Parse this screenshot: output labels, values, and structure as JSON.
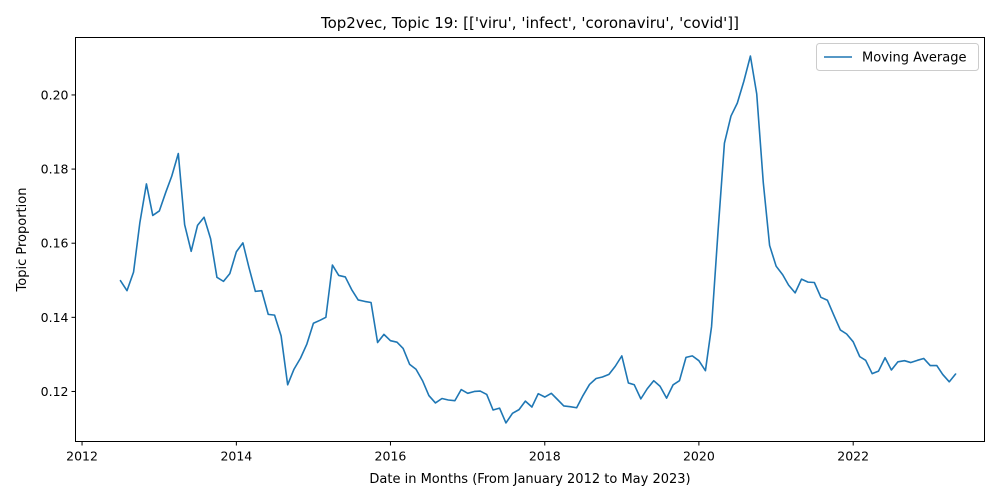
{
  "chart_data": {
    "type": "line",
    "title": "Top2vec, Topic 19: [['viru', 'infect', 'coronaviru', 'covid']]",
    "xlabel": "Date in Months (From January 2012 to May 2023)",
    "ylabel": "Topic Proportion",
    "xlim": [
      "2011-12-01",
      "2023-09-15"
    ],
    "ylim": [
      0.1065,
      0.2155
    ],
    "xticks": [
      "2012",
      "2014",
      "2016",
      "2018",
      "2020",
      "2022"
    ],
    "yticks": [
      "0.12",
      "0.14",
      "0.16",
      "0.18",
      "0.20"
    ],
    "grid": false,
    "legend_position": "top-right",
    "series": [
      {
        "name": "Moving Average",
        "color": "#1f77b4",
        "x": [
          "2012-07",
          "2012-08",
          "2012-09",
          "2012-10",
          "2012-11",
          "2012-12",
          "2013-01",
          "2013-02",
          "2013-03",
          "2013-04",
          "2013-05",
          "2013-06",
          "2013-07",
          "2013-08",
          "2013-09",
          "2013-10",
          "2013-11",
          "2013-12",
          "2014-01",
          "2014-02",
          "2014-03",
          "2014-04",
          "2014-05",
          "2014-06",
          "2014-07",
          "2014-08",
          "2014-09",
          "2014-10",
          "2014-11",
          "2014-12",
          "2015-01",
          "2015-02",
          "2015-03",
          "2015-04",
          "2015-05",
          "2015-06",
          "2015-07",
          "2015-08",
          "2015-09",
          "2015-10",
          "2015-11",
          "2015-12",
          "2016-01",
          "2016-02",
          "2016-03",
          "2016-04",
          "2016-05",
          "2016-06",
          "2016-07",
          "2016-08",
          "2016-09",
          "2016-10",
          "2016-11",
          "2016-12",
          "2017-01",
          "2017-02",
          "2017-03",
          "2017-04",
          "2017-05",
          "2017-06",
          "2017-07",
          "2017-08",
          "2017-09",
          "2017-10",
          "2017-11",
          "2017-12",
          "2018-01",
          "2018-02",
          "2018-03",
          "2018-04",
          "2018-05",
          "2018-06",
          "2018-07",
          "2018-08",
          "2018-09",
          "2018-10",
          "2018-11",
          "2018-12",
          "2019-01",
          "2019-02",
          "2019-03",
          "2019-04",
          "2019-05",
          "2019-06",
          "2019-07",
          "2019-08",
          "2019-09",
          "2019-10",
          "2019-11",
          "2019-12",
          "2020-01",
          "2020-02",
          "2020-03",
          "2020-04",
          "2020-05",
          "2020-06",
          "2020-07",
          "2020-08",
          "2020-09",
          "2020-10",
          "2020-11",
          "2020-12",
          "2021-01",
          "2021-02",
          "2021-03",
          "2021-04",
          "2021-05",
          "2021-06",
          "2021-07",
          "2021-08",
          "2021-09",
          "2021-10",
          "2021-11",
          "2021-12",
          "2022-01",
          "2022-02",
          "2022-03",
          "2022-04",
          "2022-05",
          "2022-06",
          "2022-07",
          "2022-08",
          "2022-09",
          "2022-10",
          "2022-11",
          "2022-12",
          "2023-01",
          "2023-02",
          "2023-03",
          "2023-04",
          "2023-05"
        ],
        "y": [
          0.1499,
          0.1472,
          0.1522,
          0.1656,
          0.176,
          0.1675,
          0.1687,
          0.1738,
          0.1781,
          0.1842,
          0.165,
          0.1578,
          0.1648,
          0.167,
          0.1612,
          0.1508,
          0.1497,
          0.1518,
          0.1577,
          0.1601,
          0.1536,
          0.147,
          0.1472,
          0.1408,
          0.1406,
          0.135,
          0.1218,
          0.126,
          0.129,
          0.1328,
          0.1384,
          0.1392,
          0.14,
          0.1541,
          0.1513,
          0.1509,
          0.1475,
          0.1447,
          0.1443,
          0.144,
          0.1332,
          0.1354,
          0.1337,
          0.1333,
          0.1316,
          0.1273,
          0.126,
          0.1229,
          0.1189,
          0.1169,
          0.1181,
          0.1177,
          0.1175,
          0.1205,
          0.1195,
          0.12,
          0.1201,
          0.1192,
          0.115,
          0.1155,
          0.1115,
          0.1141,
          0.1151,
          0.1174,
          0.1158,
          0.1194,
          0.1185,
          0.1195,
          0.1179,
          0.1161,
          0.1159,
          0.1156,
          0.1189,
          0.1219,
          0.1235,
          0.1239,
          0.1246,
          0.1268,
          0.1296,
          0.1223,
          0.1218,
          0.118,
          0.1207,
          0.1229,
          0.1214,
          0.1182,
          0.1218,
          0.1229,
          0.1292,
          0.1296,
          0.1283,
          0.1256,
          0.1375,
          0.1634,
          0.187,
          0.1943,
          0.1978,
          0.2037,
          0.2105,
          0.2003,
          0.1764,
          0.1594,
          0.1538,
          0.1515,
          0.1487,
          0.1466,
          0.1503,
          0.1495,
          0.1494,
          0.1454,
          0.1446,
          0.1406,
          0.1366,
          0.1355,
          0.1334,
          0.1294,
          0.1284,
          0.1248,
          0.1255,
          0.1291,
          0.1258,
          0.128,
          0.1283,
          0.1278,
          0.1284,
          0.1289,
          0.127,
          0.127,
          0.1246,
          0.1226,
          0.1247
        ]
      }
    ]
  }
}
